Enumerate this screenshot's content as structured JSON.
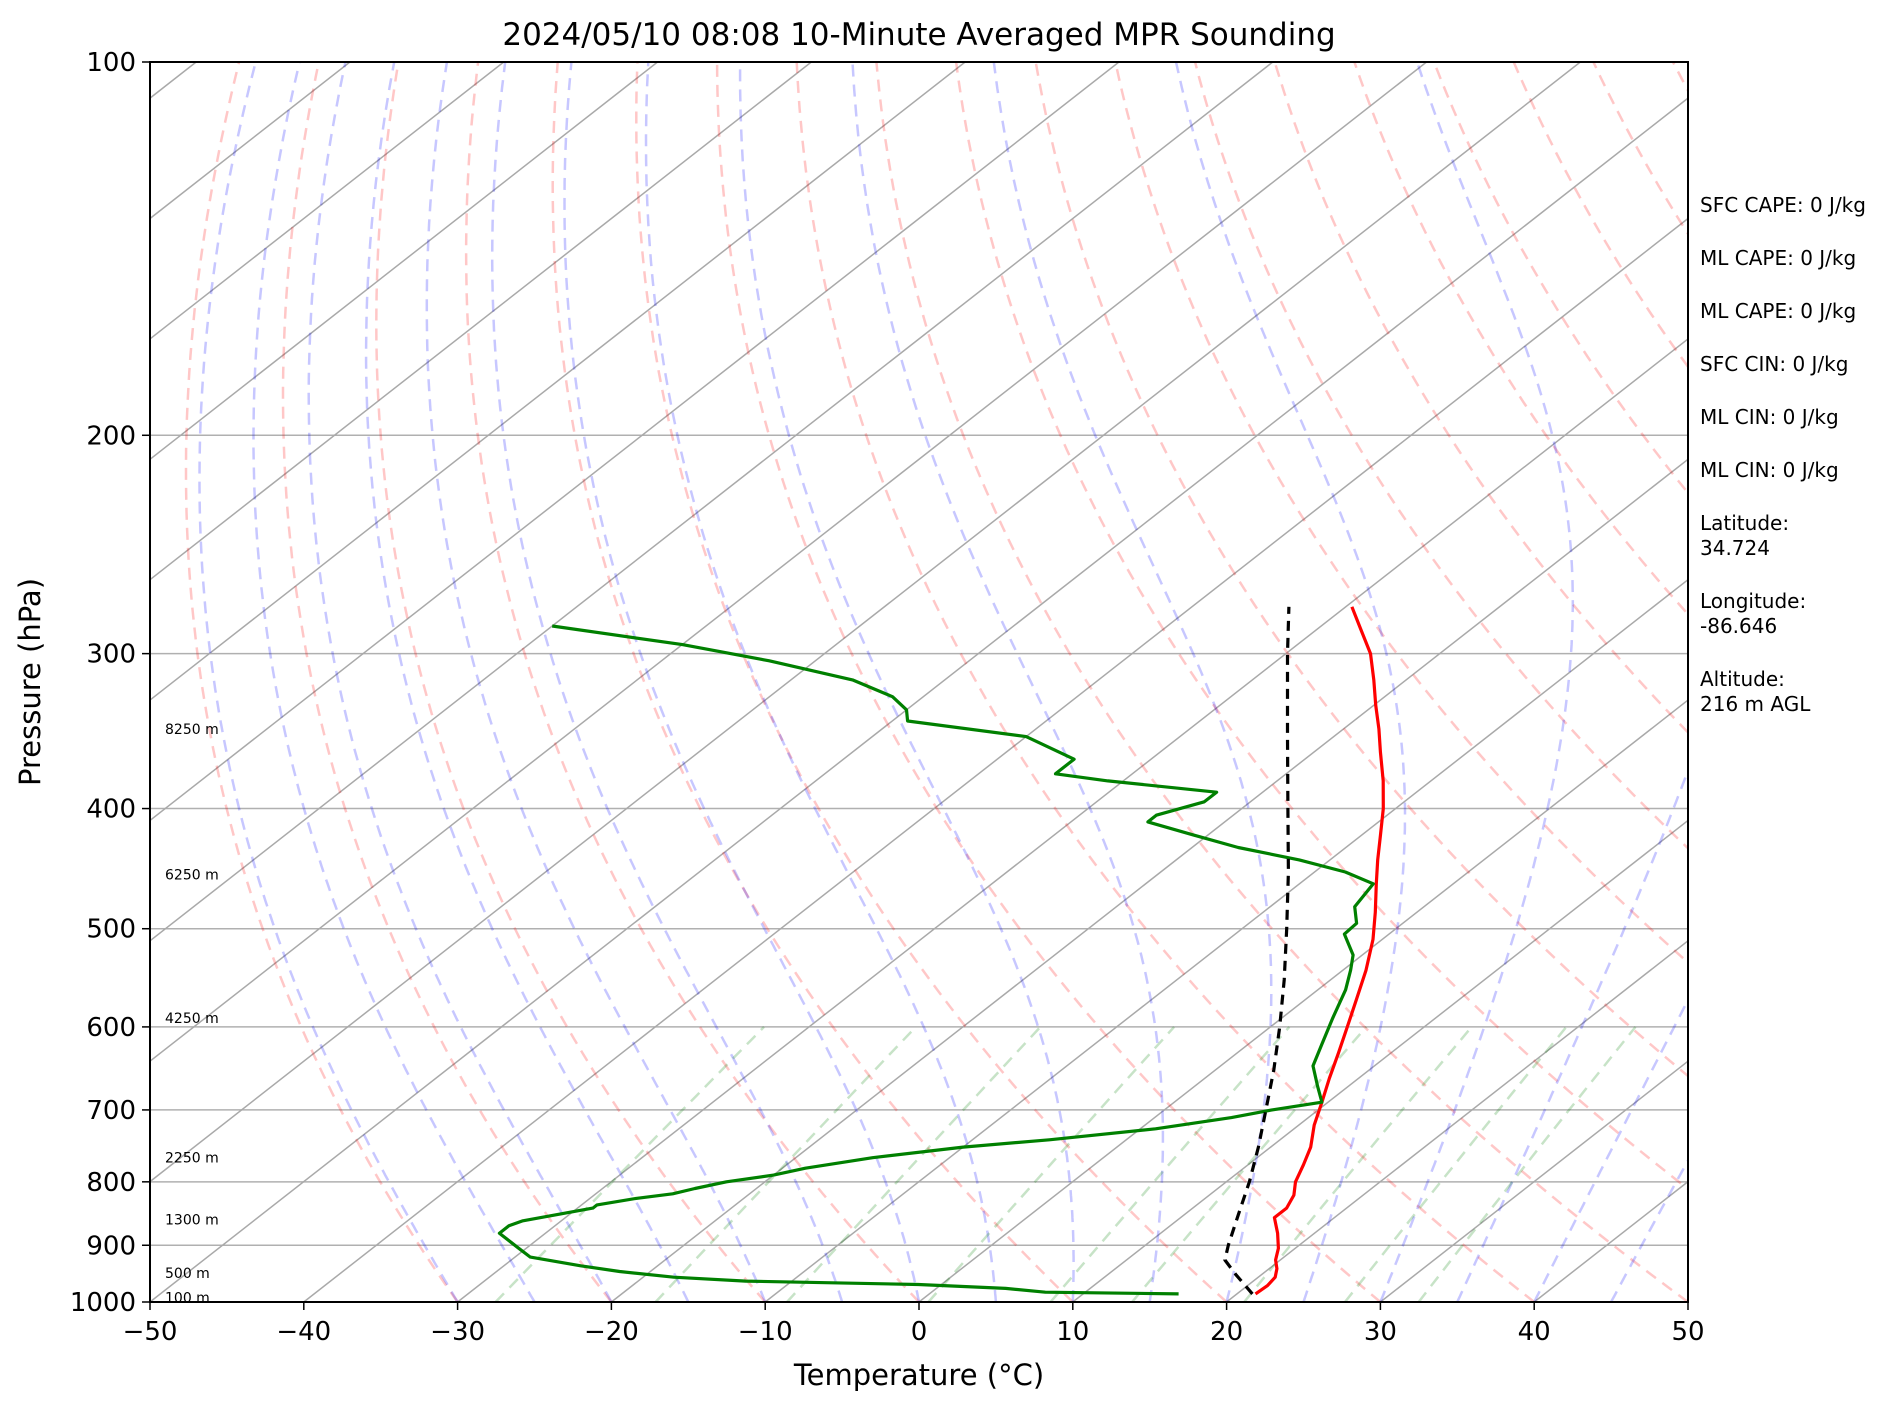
{
  "chart_data": {
    "type": "skew-t",
    "title": "2024/05/10 08:08 10-Minute Averaged MPR Sounding",
    "xlabel": "Temperature (°C)",
    "ylabel": "Pressure (hPa)",
    "xlim": [
      -50,
      50
    ],
    "ylim": [
      1000,
      100
    ],
    "y_scale": "log",
    "skew_deg_per_decade": 103,
    "grid": true,
    "x_ticks": [
      "−50",
      "−40",
      "−30",
      "−20",
      "−10",
      "0",
      "10",
      "20",
      "30",
      "40",
      "50"
    ],
    "y_ticks": [
      "100",
      "200",
      "300",
      "400",
      "500",
      "600",
      "700",
      "800",
      "900",
      "1000"
    ],
    "height_labels": [
      {
        "label": "100 m",
        "p": 992
      },
      {
        "label": "500 m",
        "p": 948
      },
      {
        "label": "1300 m",
        "p": 858
      },
      {
        "label": "2250 m",
        "p": 765
      },
      {
        "label": "4250 m",
        "p": 590
      },
      {
        "label": "6250 m",
        "p": 452
      },
      {
        "label": "8250 m",
        "p": 345
      }
    ],
    "series": [
      {
        "color": "#ff0000",
        "points": [
          {
            "p": 985,
            "t": 21.2
          },
          {
            "p": 970,
            "t": 21.3
          },
          {
            "p": 955,
            "t": 21.1
          },
          {
            "p": 940,
            "t": 20.5
          },
          {
            "p": 925,
            "t": 19.7
          },
          {
            "p": 905,
            "t": 18.9
          },
          {
            "p": 880,
            "t": 17.6
          },
          {
            "p": 855,
            "t": 16.1
          },
          {
            "p": 840,
            "t": 16.1
          },
          {
            "p": 820,
            "t": 15.5
          },
          {
            "p": 800,
            "t": 14.5
          },
          {
            "p": 775,
            "t": 13.6
          },
          {
            "p": 750,
            "t": 12.6
          },
          {
            "p": 720,
            "t": 11.0
          },
          {
            "p": 690,
            "t": 9.6
          },
          {
            "p": 660,
            "t": 8.1
          },
          {
            "p": 630,
            "t": 6.6
          },
          {
            "p": 600,
            "t": 5.0
          },
          {
            "p": 570,
            "t": 3.3
          },
          {
            "p": 540,
            "t": 1.5
          },
          {
            "p": 510,
            "t": -0.6
          },
          {
            "p": 485,
            "t": -2.7
          },
          {
            "p": 460,
            "t": -5.0
          },
          {
            "p": 440,
            "t": -6.9
          },
          {
            "p": 420,
            "t": -8.8
          },
          {
            "p": 400,
            "t": -10.8
          },
          {
            "p": 380,
            "t": -13.1
          },
          {
            "p": 360,
            "t": -15.7
          },
          {
            "p": 345,
            "t": -17.7
          },
          {
            "p": 330,
            "t": -19.9
          },
          {
            "p": 315,
            "t": -22.1
          },
          {
            "p": 300,
            "t": -24.5
          },
          {
            "p": 288,
            "t": -26.9
          },
          {
            "p": 275,
            "t": -29.6
          }
        ]
      },
      {
        "color": "#008000",
        "points": [
          {
            "p": 985,
            "t": 16.2
          },
          {
            "p": 982,
            "t": 7.4
          },
          {
            "p": 975,
            "t": 4.5
          },
          {
            "p": 968,
            "t": -1.5
          },
          {
            "p": 962,
            "t": -13.0
          },
          {
            "p": 955,
            "t": -18.0
          },
          {
            "p": 945,
            "t": -22.0
          },
          {
            "p": 935,
            "t": -25.0
          },
          {
            "p": 920,
            "t": -29.0
          },
          {
            "p": 905,
            "t": -30.5
          },
          {
            "p": 880,
            "t": -33.0
          },
          {
            "p": 868,
            "t": -33.0
          },
          {
            "p": 860,
            "t": -32.5
          },
          {
            "p": 840,
            "t": -29.0
          },
          {
            "p": 835,
            "t": -29.0
          },
          {
            "p": 825,
            "t": -27.0
          },
          {
            "p": 818,
            "t": -25.0
          },
          {
            "p": 810,
            "t": -24.0
          },
          {
            "p": 800,
            "t": -22.5
          },
          {
            "p": 790,
            "t": -20.0
          },
          {
            "p": 780,
            "t": -18.5
          },
          {
            "p": 765,
            "t": -15.0
          },
          {
            "p": 750,
            "t": -10.0
          },
          {
            "p": 740,
            "t": -5.0
          },
          {
            "p": 725,
            "t": 1.0
          },
          {
            "p": 710,
            "t": 5.0
          },
          {
            "p": 700,
            "t": 7.0
          },
          {
            "p": 690,
            "t": 9.6
          },
          {
            "p": 670,
            "t": 8.0
          },
          {
            "p": 645,
            "t": 6.0
          },
          {
            "p": 620,
            "t": 4.8
          },
          {
            "p": 590,
            "t": 3.3
          },
          {
            "p": 560,
            "t": 1.8
          },
          {
            "p": 540,
            "t": 0.5
          },
          {
            "p": 525,
            "t": -0.6
          },
          {
            "p": 505,
            "t": -2.9
          },
          {
            "p": 495,
            "t": -3.0
          },
          {
            "p": 480,
            "t": -4.5
          },
          {
            "p": 460,
            "t": -5.2
          },
          {
            "p": 450,
            "t": -8.0
          },
          {
            "p": 440,
            "t": -12.0
          },
          {
            "p": 430,
            "t": -17.0
          },
          {
            "p": 420,
            "t": -21.0
          },
          {
            "p": 410,
            "t": -25.0
          },
          {
            "p": 405,
            "t": -25.0
          },
          {
            "p": 395,
            "t": -23.0
          },
          {
            "p": 388,
            "t": -23.0
          },
          {
            "p": 380,
            "t": -31.0
          },
          {
            "p": 375,
            "t": -35.0
          },
          {
            "p": 365,
            "t": -35.0
          },
          {
            "p": 350,
            "t": -40.0
          },
          {
            "p": 340,
            "t": -49.0
          },
          {
            "p": 333,
            "t": -50.0
          },
          {
            "p": 325,
            "t": -52.0
          },
          {
            "p": 315,
            "t": -56.0
          },
          {
            "p": 304,
            "t": -63.0
          },
          {
            "p": 295,
            "t": -70.0
          },
          {
            "p": 285,
            "t": -80.0
          }
        ]
      },
      {
        "color": "#000000",
        "points": [
          {
            "p": 985,
            "t": 21.0
          },
          {
            "p": 950,
            "t": 18.3
          },
          {
            "p": 925,
            "t": 16.4
          },
          {
            "p": 900,
            "t": 15.4
          },
          {
            "p": 850,
            "t": 13.5
          },
          {
            "p": 800,
            "t": 11.5
          },
          {
            "p": 750,
            "t": 9.2
          },
          {
            "p": 700,
            "t": 6.6
          },
          {
            "p": 650,
            "t": 3.8
          },
          {
            "p": 600,
            "t": 0.6
          },
          {
            "p": 550,
            "t": -3.0
          },
          {
            "p": 500,
            "t": -7.1
          },
          {
            "p": 450,
            "t": -11.7
          },
          {
            "p": 400,
            "t": -17.0
          },
          {
            "p": 350,
            "t": -23.0
          },
          {
            "p": 300,
            "t": -29.9
          },
          {
            "p": 275,
            "t": -33.7
          }
        ]
      }
    ]
  },
  "info_panel": [
    "SFC CAPE: 0 J/kg",
    "ML CAPE: 0 J/kg",
    "ML CAPE: 0 J/kg",
    "SFC CIN: 0 J/kg",
    "ML CIN: 0 J/kg",
    "ML CIN: 0 J/kg",
    "Latitude:\n34.724",
    "Longitude:\n-86.646",
    "Altitude:\n216 m AGL"
  ]
}
